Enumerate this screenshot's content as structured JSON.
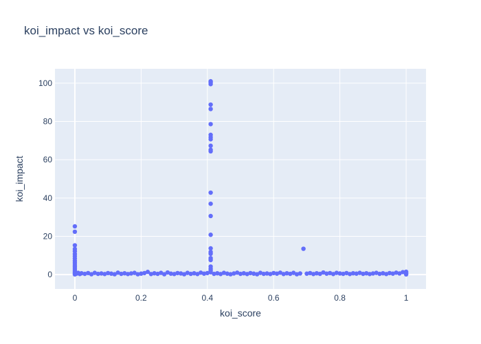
{
  "chart_data": {
    "type": "scatter",
    "title": "koi_impact vs koi_score",
    "xlabel": "koi_score",
    "ylabel": "koi_impact",
    "xlim": [
      -0.06,
      1.06
    ],
    "ylim": [
      -7.5,
      107.5
    ],
    "xticks": [
      0,
      0.2,
      0.4,
      0.6,
      0.8,
      1
    ],
    "xtick_labels": [
      "0",
      "0.2",
      "0.4",
      "0.6",
      "0.8",
      "1"
    ],
    "yticks": [
      0,
      20,
      40,
      60,
      80,
      100
    ],
    "ytick_labels": [
      "0",
      "20",
      "40",
      "60",
      "80",
      "100"
    ],
    "grid": true,
    "legend": "none",
    "marker_color": "#636efa",
    "plot_bg": "#e5ecf6",
    "points": [
      {
        "x": 0.0,
        "y": 25.2
      },
      {
        "x": 0.0,
        "y": 22.4
      },
      {
        "x": 0.0,
        "y": 15.3
      },
      {
        "x": 0.0,
        "y": 13.4
      },
      {
        "x": 0.0,
        "y": 12.2
      },
      {
        "x": 0.0,
        "y": 10.8
      },
      {
        "x": 0.0,
        "y": 9.6
      },
      {
        "x": 0.0,
        "y": 8.4
      },
      {
        "x": 0.0,
        "y": 7.2
      },
      {
        "x": 0.0,
        "y": 6.1
      },
      {
        "x": 0.0,
        "y": 5.0
      },
      {
        "x": 0.0,
        "y": 4.0
      },
      {
        "x": 0.0,
        "y": 3.0
      },
      {
        "x": 0.0,
        "y": 2.1
      },
      {
        "x": 0.0,
        "y": 1.3
      },
      {
        "x": 0.0,
        "y": 0.6
      },
      {
        "x": 0.0,
        "y": 0.1
      },
      {
        "x": 0.41,
        "y": 101.0
      },
      {
        "x": 0.41,
        "y": 100.3
      },
      {
        "x": 0.41,
        "y": 99.5
      },
      {
        "x": 0.41,
        "y": 88.8
      },
      {
        "x": 0.41,
        "y": 86.5
      },
      {
        "x": 0.41,
        "y": 78.6
      },
      {
        "x": 0.41,
        "y": 73.0
      },
      {
        "x": 0.41,
        "y": 71.8
      },
      {
        "x": 0.41,
        "y": 70.7
      },
      {
        "x": 0.41,
        "y": 67.3
      },
      {
        "x": 0.41,
        "y": 65.2
      },
      {
        "x": 0.41,
        "y": 64.4
      },
      {
        "x": 0.41,
        "y": 42.8
      },
      {
        "x": 0.41,
        "y": 37.0
      },
      {
        "x": 0.41,
        "y": 30.6
      },
      {
        "x": 0.41,
        "y": 20.8
      },
      {
        "x": 0.41,
        "y": 13.7
      },
      {
        "x": 0.41,
        "y": 11.8
      },
      {
        "x": 0.41,
        "y": 10.9
      },
      {
        "x": 0.41,
        "y": 8.6
      },
      {
        "x": 0.41,
        "y": 7.6
      },
      {
        "x": 0.41,
        "y": 4.2
      },
      {
        "x": 0.41,
        "y": 3.0
      },
      {
        "x": 0.41,
        "y": 2.1
      },
      {
        "x": 0.41,
        "y": 1.2
      },
      {
        "x": 0.69,
        "y": 13.5
      },
      {
        "x": 0.005,
        "y": 0.5
      },
      {
        "x": 0.01,
        "y": 0.9
      },
      {
        "x": 0.015,
        "y": 0.3
      },
      {
        "x": 0.02,
        "y": 0.7
      },
      {
        "x": 0.03,
        "y": 0.4
      },
      {
        "x": 0.04,
        "y": 0.8
      },
      {
        "x": 0.05,
        "y": 0.2
      },
      {
        "x": 0.06,
        "y": 0.9
      },
      {
        "x": 0.07,
        "y": 0.4
      },
      {
        "x": 0.08,
        "y": 0.6
      },
      {
        "x": 0.09,
        "y": 0.3
      },
      {
        "x": 0.1,
        "y": 0.8
      },
      {
        "x": 0.11,
        "y": 0.5
      },
      {
        "x": 0.12,
        "y": 0.2
      },
      {
        "x": 0.13,
        "y": 1.0
      },
      {
        "x": 0.14,
        "y": 0.4
      },
      {
        "x": 0.15,
        "y": 0.7
      },
      {
        "x": 0.16,
        "y": 0.3
      },
      {
        "x": 0.17,
        "y": 0.6
      },
      {
        "x": 0.18,
        "y": 0.9
      },
      {
        "x": 0.19,
        "y": 0.2
      },
      {
        "x": 0.2,
        "y": 0.5
      },
      {
        "x": 0.21,
        "y": 0.8
      },
      {
        "x": 0.22,
        "y": 1.4
      },
      {
        "x": 0.23,
        "y": 0.3
      },
      {
        "x": 0.24,
        "y": 0.7
      },
      {
        "x": 0.25,
        "y": 0.4
      },
      {
        "x": 0.26,
        "y": 0.9
      },
      {
        "x": 0.27,
        "y": 0.2
      },
      {
        "x": 0.28,
        "y": 1.1
      },
      {
        "x": 0.29,
        "y": 0.5
      },
      {
        "x": 0.3,
        "y": 0.3
      },
      {
        "x": 0.31,
        "y": 0.8
      },
      {
        "x": 0.32,
        "y": 0.6
      },
      {
        "x": 0.33,
        "y": 0.2
      },
      {
        "x": 0.34,
        "y": 0.9
      },
      {
        "x": 0.35,
        "y": 0.4
      },
      {
        "x": 0.36,
        "y": 0.7
      },
      {
        "x": 0.37,
        "y": 0.3
      },
      {
        "x": 0.38,
        "y": 1.0
      },
      {
        "x": 0.39,
        "y": 0.5
      },
      {
        "x": 0.4,
        "y": 0.8
      },
      {
        "x": 0.42,
        "y": 0.4
      },
      {
        "x": 0.43,
        "y": 0.7
      },
      {
        "x": 0.44,
        "y": 0.3
      },
      {
        "x": 0.45,
        "y": 0.9
      },
      {
        "x": 0.46,
        "y": 0.5
      },
      {
        "x": 0.47,
        "y": 0.2
      },
      {
        "x": 0.48,
        "y": 0.6
      },
      {
        "x": 0.49,
        "y": 1.0
      },
      {
        "x": 0.5,
        "y": 0.4
      },
      {
        "x": 0.51,
        "y": 0.7
      },
      {
        "x": 0.52,
        "y": 0.3
      },
      {
        "x": 0.53,
        "y": 0.8
      },
      {
        "x": 0.54,
        "y": 0.5
      },
      {
        "x": 0.55,
        "y": 0.2
      },
      {
        "x": 0.56,
        "y": 0.9
      },
      {
        "x": 0.57,
        "y": 0.4
      },
      {
        "x": 0.58,
        "y": 0.6
      },
      {
        "x": 0.59,
        "y": 0.3
      },
      {
        "x": 0.6,
        "y": 0.8
      },
      {
        "x": 0.61,
        "y": 0.5
      },
      {
        "x": 0.62,
        "y": 1.0
      },
      {
        "x": 0.63,
        "y": 0.3
      },
      {
        "x": 0.64,
        "y": 0.7
      },
      {
        "x": 0.65,
        "y": 0.4
      },
      {
        "x": 0.66,
        "y": 0.9
      },
      {
        "x": 0.67,
        "y": 0.2
      },
      {
        "x": 0.68,
        "y": 0.6
      },
      {
        "x": 0.7,
        "y": 0.5
      },
      {
        "x": 0.71,
        "y": 0.8
      },
      {
        "x": 0.72,
        "y": 0.3
      },
      {
        "x": 0.73,
        "y": 0.7
      },
      {
        "x": 0.74,
        "y": 0.4
      },
      {
        "x": 0.75,
        "y": 1.1
      },
      {
        "x": 0.76,
        "y": 0.5
      },
      {
        "x": 0.77,
        "y": 0.8
      },
      {
        "x": 0.78,
        "y": 0.3
      },
      {
        "x": 0.79,
        "y": 0.9
      },
      {
        "x": 0.8,
        "y": 0.6
      },
      {
        "x": 0.81,
        "y": 0.4
      },
      {
        "x": 0.82,
        "y": 0.8
      },
      {
        "x": 0.83,
        "y": 0.3
      },
      {
        "x": 0.84,
        "y": 0.7
      },
      {
        "x": 0.85,
        "y": 0.5
      },
      {
        "x": 0.86,
        "y": 0.9
      },
      {
        "x": 0.87,
        "y": 0.4
      },
      {
        "x": 0.88,
        "y": 0.7
      },
      {
        "x": 0.89,
        "y": 0.3
      },
      {
        "x": 0.9,
        "y": 0.6
      },
      {
        "x": 0.91,
        "y": 0.9
      },
      {
        "x": 0.92,
        "y": 0.4
      },
      {
        "x": 0.93,
        "y": 0.7
      },
      {
        "x": 0.94,
        "y": 0.3
      },
      {
        "x": 0.95,
        "y": 0.8
      },
      {
        "x": 0.96,
        "y": 0.5
      },
      {
        "x": 0.97,
        "y": 1.0
      },
      {
        "x": 0.98,
        "y": 0.6
      },
      {
        "x": 0.99,
        "y": 1.3
      },
      {
        "x": 1.0,
        "y": 0.4
      },
      {
        "x": 1.0,
        "y": 0.9
      },
      {
        "x": 1.0,
        "y": 1.5
      },
      {
        "x": 1.0,
        "y": 0.1
      }
    ]
  }
}
